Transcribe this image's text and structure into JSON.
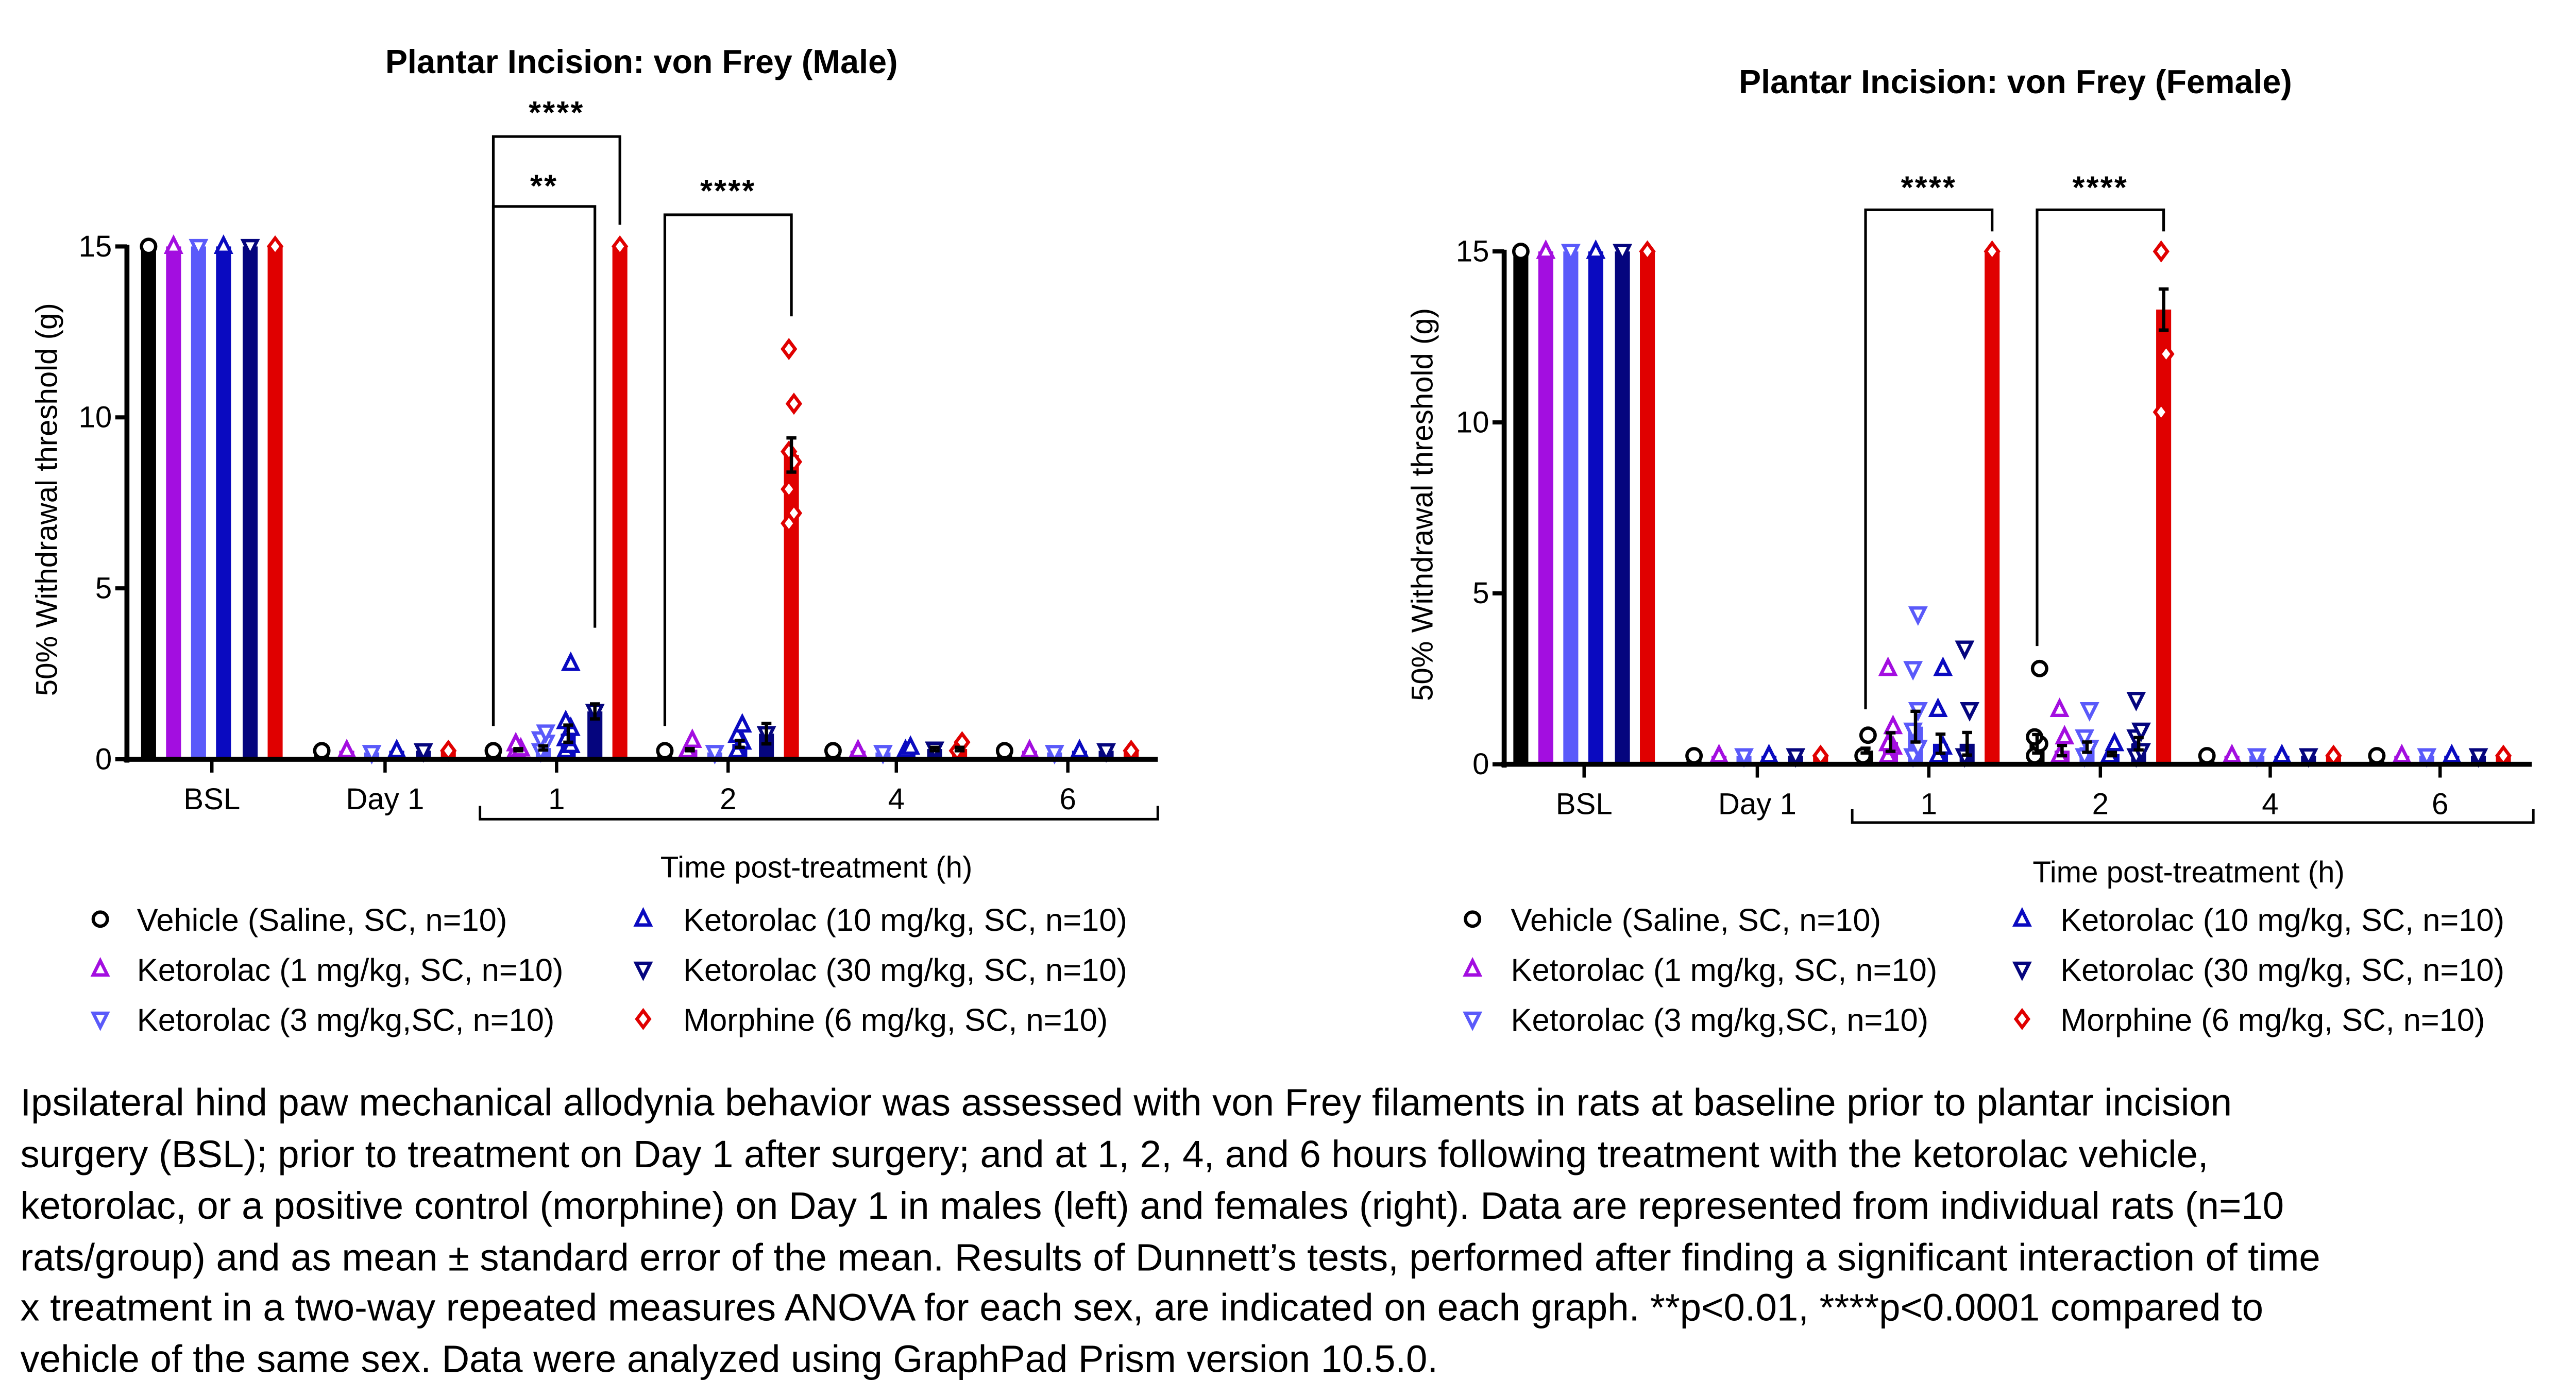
{
  "groups": [
    {
      "name": "Vehicle (Saline, SC, n=10)",
      "color": "#000000",
      "marker": "circle"
    },
    {
      "name": "Ketorolac (1 mg/kg, SC, n=10)",
      "color": "#a30ee0",
      "marker": "triangle-up"
    },
    {
      "name": "Ketorolac (3 mg/kg,SC, n=10)",
      "color": "#5a5afa",
      "marker": "triangle-down"
    },
    {
      "name": "Ketorolac (10 mg/kg, SC, n=10)",
      "color": "#0a0ac0",
      "marker": "triangle-up"
    },
    {
      "name": "Ketorolac (30 mg/kg, SC, n=10)",
      "color": "#05057e",
      "marker": "triangle-down"
    },
    {
      "name": "Morphine (6 mg/kg, SC, n=10)",
      "color": "#e00000",
      "marker": "diamond"
    }
  ],
  "chart_data": [
    {
      "type": "bar",
      "title": "Plantar Incision: von Frey (Male)",
      "ylabel": "50% Withdrawal threshold (g)",
      "xlabel": "Time post-treatment (h)",
      "categories": [
        "BSL",
        "Day 1",
        "1",
        "2",
        "4",
        "6"
      ],
      "ylim": [
        0,
        15
      ],
      "yticks": [
        "0",
        "5",
        "10",
        "15"
      ],
      "grid": false,
      "series": [
        {
          "name": "Vehicle (Saline, SC, n=10)",
          "mean": [
            15,
            0.25,
            0.25,
            0.25,
            0.25,
            0.25
          ],
          "sem": [
            0,
            0,
            0,
            0,
            0,
            0
          ],
          "points": [
            [
              15
            ],
            [
              0.25
            ],
            [
              0.25
            ],
            [
              0.25
            ],
            [
              0.25
            ],
            [
              0.25
            ]
          ]
        },
        {
          "name": "Ketorolac (1 mg/kg, SC, n=10)",
          "mean": [
            15,
            0.25,
            0.28,
            0.28,
            0.25,
            0.25
          ],
          "sem": [
            0,
            0,
            0.03,
            0.03,
            0,
            0
          ],
          "points": [
            [
              15
            ],
            [
              0.25
            ],
            [
              0.25,
              0.3,
              0.45
            ],
            [
              0.25,
              0.55
            ],
            [
              0.25
            ],
            [
              0.25
            ]
          ]
        },
        {
          "name": "Ketorolac (3 mg/kg,SC, n=10)",
          "mean": [
            15,
            0.2,
            0.33,
            0.2,
            0.2,
            0.2
          ],
          "sem": [
            0,
            0,
            0.06,
            0,
            0,
            0
          ],
          "points": [
            [
              15
            ],
            [
              0.2
            ],
            [
              0.25,
              0.5,
              0.6,
              0.8
            ],
            [
              0.2
            ],
            [
              0.2
            ],
            [
              0.2
            ]
          ]
        },
        {
          "name": "Ketorolac (10 mg/kg, SC, n=10)",
          "mean": [
            15,
            0.25,
            0.75,
            0.45,
            0.25,
            0.25
          ],
          "sem": [
            0,
            0,
            0.25,
            0.1,
            0,
            0
          ],
          "points": [
            [
              15
            ],
            [
              0.25
            ],
            [
              0.25,
              0.4,
              0.6,
              0.9,
              1.1,
              2.8
            ],
            [
              0.25,
              0.5,
              0.7,
              1.0
            ],
            [
              0.25,
              0.35
            ],
            [
              0.25
            ]
          ]
        },
        {
          "name": "Ketorolac (30 mg/kg, SC, n=10)",
          "mean": [
            15,
            0.25,
            1.4,
            0.75,
            0.3,
            0.25
          ],
          "sem": [
            0,
            0,
            0.22,
            0.3,
            0.05,
            0
          ]
        },
        {
          "name": "Morphine (6 mg/kg, SC, n=10)",
          "mean": [
            15,
            0.25,
            15,
            8.9,
            0.3,
            0.25
          ],
          "sem": [
            0,
            0,
            0,
            0.5,
            0.05,
            0
          ],
          "points": [
            [
              15
            ],
            [
              0.25
            ],
            [
              15
            ],
            [
              12,
              10.4,
              9.0,
              8.7,
              7.9,
              7.2,
              6.9
            ],
            [
              0.25,
              0.5
            ],
            [
              0.25
            ]
          ]
        }
      ],
      "significance": [
        {
          "label": "****",
          "category": "1",
          "from": "Vehicle (Saline, SC, n=10)",
          "to": "Morphine (6 mg/kg, SC, n=10)"
        },
        {
          "label": "**",
          "category": "1",
          "from": "Vehicle (Saline, SC, n=10)",
          "to": "Ketorolac (30 mg/kg, SC, n=10)"
        },
        {
          "label": "****",
          "category": "2",
          "from": "Vehicle (Saline, SC, n=10)",
          "to": "Morphine (6 mg/kg, SC, n=10)"
        }
      ]
    },
    {
      "type": "bar",
      "title": "Plantar Incision: von Frey (Female)",
      "ylabel": "50% Withdrawal threshold (g)",
      "xlabel": "Time post-treatment (h)",
      "categories": [
        "BSL",
        "Day 1",
        "1",
        "2",
        "4",
        "6"
      ],
      "ylim": [
        0,
        15
      ],
      "yticks": [
        "0",
        "5",
        "10",
        "15"
      ],
      "grid": false,
      "series": [
        {
          "name": "Vehicle (Saline, SC, n=10)",
          "mean": [
            15,
            0.25,
            0.4,
            0.6,
            0.25,
            0.25
          ],
          "sem": [
            0,
            0,
            0.07,
            0.27,
            0,
            0
          ],
          "points": [
            [
              15
            ],
            [
              0.25
            ],
            [
              0.25,
              0.85
            ],
            [
              0.25,
              0.6,
              0.8,
              2.8
            ],
            [
              0.25
            ],
            [
              0.25
            ]
          ]
        },
        {
          "name": "Ketorolac (1 mg/kg, SC, n=10)",
          "mean": [
            15,
            0.25,
            0.65,
            0.4,
            0.25,
            0.25
          ],
          "sem": [
            0,
            0,
            0.27,
            0.15,
            0,
            0
          ],
          "points": [
            [
              15
            ],
            [
              0.25
            ],
            [
              0.25,
              0.5,
              0.6,
              1.1,
              2.8
            ],
            [
              0.25,
              0.8,
              1.6
            ],
            [
              0.25
            ],
            [
              0.25
            ]
          ]
        },
        {
          "name": "Ketorolac (3 mg/kg,SC, n=10)",
          "mean": [
            15,
            0.25,
            1.1,
            0.5,
            0.25,
            0.25
          ],
          "sem": [
            0,
            0,
            0.45,
            0.15,
            0,
            0
          ],
          "points": [
            [
              15
            ],
            [
              0.25
            ],
            [
              0.25,
              0.5,
              1.0,
              1.6,
              2.8,
              4.4
            ],
            [
              0.25,
              0.5,
              0.8,
              1.6
            ],
            [
              0.25
            ],
            [
              0.25
            ]
          ]
        },
        {
          "name": "Ketorolac (10 mg/kg, SC, n=10)",
          "mean": [
            15,
            0.25,
            0.6,
            0.3,
            0.25,
            0.25
          ],
          "sem": [
            0,
            0,
            0.28,
            0.05,
            0,
            0
          ],
          "points": [
            [
              15
            ],
            [
              0.25
            ],
            [
              0.25,
              0.5,
              1.6,
              2.8
            ],
            [
              0.25,
              0.6
            ],
            [
              0.25
            ],
            [
              0.25
            ]
          ]
        },
        {
          "name": "Ketorolac (30 mg/kg, SC, n=10)",
          "mean": [
            15,
            0.25,
            0.6,
            0.6,
            0.25,
            0.25
          ],
          "sem": [
            0,
            0,
            0.33,
            0.18,
            0,
            0
          ],
          "points": [
            [
              15
            ],
            [
              0.25
            ],
            [
              0.25,
              1.6,
              3.4
            ],
            [
              0.25,
              0.4,
              0.8,
              1.0,
              1.9
            ],
            [
              0.25
            ],
            [
              0.25
            ]
          ]
        },
        {
          "name": "Morphine (6 mg/kg, SC, n=10)",
          "mean": [
            15,
            0.25,
            15,
            13.3,
            0.25,
            0.25
          ],
          "sem": [
            0,
            0,
            0,
            0.6,
            0,
            0
          ],
          "points": [
            [
              15
            ],
            [
              0.25
            ],
            [
              15
            ],
            [
              15,
              12,
              10.3
            ],
            [
              0.25
            ],
            [
              0.25
            ]
          ]
        }
      ],
      "significance": [
        {
          "label": "****",
          "category": "1",
          "from": "Vehicle (Saline, SC, n=10)",
          "to": "Morphine (6 mg/kg, SC, n=10)"
        },
        {
          "label": "****",
          "category": "2",
          "from": "Vehicle (Saline, SC, n=10)",
          "to": "Morphine (6 mg/kg, SC, n=10)"
        }
      ]
    }
  ],
  "caption": [
    "Ipsilateral hind paw mechanical allodynia behavior was assessed with von Frey filaments in rats at baseline prior to plantar incision",
    "surgery (BSL); prior to treatment on Day 1 after surgery; and at 1, 2, 4, and 6 hours following treatment with the ketorolac vehicle,",
    "ketorolac, or a positive control (morphine) on Day 1 in males (left) and females (right). Data are represented from individual rats (n=10",
    "rats/group) and as mean ± standard error of the mean. Results of Dunnett’s tests, performed after finding a significant interaction of time",
    "x treatment in a two-way repeated measures ANOVA for each sex, are indicated on each graph. **p<0.01, ****p<0.0001 compared to",
    "vehicle of the same sex. Data were analyzed using GraphPad Prism version 10.5.0."
  ]
}
